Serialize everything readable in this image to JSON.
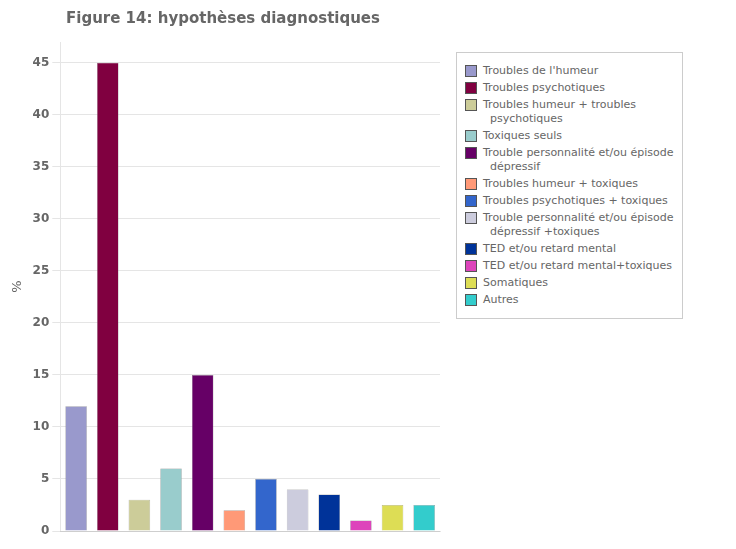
{
  "chart_data": {
    "type": "bar",
    "title": "Figure 14: hypothèses diagnostiques",
    "ylabel": "%",
    "categories": [
      "Troubles de l'humeur",
      "Troubles psychotiques",
      "Troubles humeur + troubles\n  psychotiques",
      "Toxiques seuls",
      "Trouble personnalité et/ou épisode\n  dépressif",
      "Troubles humeur + toxiques",
      "Troubles psychotiques + toxiques",
      "Trouble personnalité et/ou épisode\n  dépressif +toxiques",
      "TED et/ou retard mental",
      "TED et/ou retard mental+toxiques",
      "Somatiques",
      "Autres"
    ],
    "values": [
      12,
      45,
      3,
      6,
      15,
      2,
      5,
      4,
      3.5,
      1,
      2.5,
      2.5
    ],
    "colors": [
      "#9999cc",
      "#800040",
      "#cccc99",
      "#99cccc",
      "#660066",
      "#ff9977",
      "#3366cc",
      "#ccccdd",
      "#003399",
      "#dd44bb",
      "#dddd55",
      "#33cccc"
    ],
    "ylim": [
      0,
      47
    ],
    "yticks": [
      0,
      5,
      10,
      15,
      20,
      25,
      30,
      35,
      40,
      45
    ],
    "grid": true,
    "legend": "right",
    "tick_labels": "y"
  }
}
